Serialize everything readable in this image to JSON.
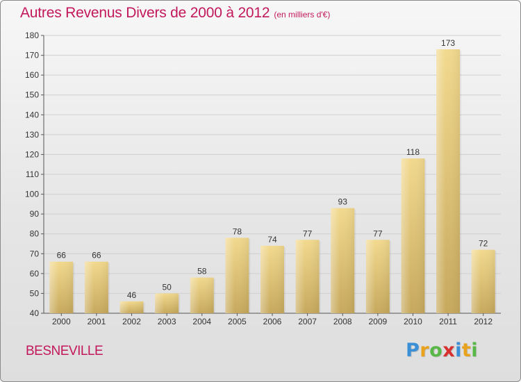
{
  "title": "Autres Revenus Divers de 2000 à 2012",
  "unit": "(en milliers d'€)",
  "town": "BESNEVILLE",
  "logo": {
    "letters": [
      "P",
      "r",
      "o",
      "x",
      "i",
      "t",
      "i"
    ],
    "colors": [
      "#3a8fd6",
      "#e8a21b",
      "#58b847",
      "#d8302f",
      "#3a8fd6",
      "#e8a21b",
      "#58b847"
    ]
  },
  "chart_data": {
    "type": "bar",
    "categories": [
      "2000",
      "2001",
      "2002",
      "2003",
      "2004",
      "2005",
      "2006",
      "2007",
      "2008",
      "2009",
      "2010",
      "2011",
      "2012"
    ],
    "values": [
      66,
      66,
      46,
      50,
      58,
      78,
      74,
      77,
      93,
      77,
      118,
      173,
      72
    ],
    "ylim": [
      40,
      180
    ],
    "yticks": [
      40,
      50,
      60,
      70,
      80,
      90,
      100,
      110,
      120,
      130,
      140,
      150,
      160,
      170,
      180
    ],
    "grid": true,
    "legend": "none",
    "bar_color": "#e3c77f"
  }
}
